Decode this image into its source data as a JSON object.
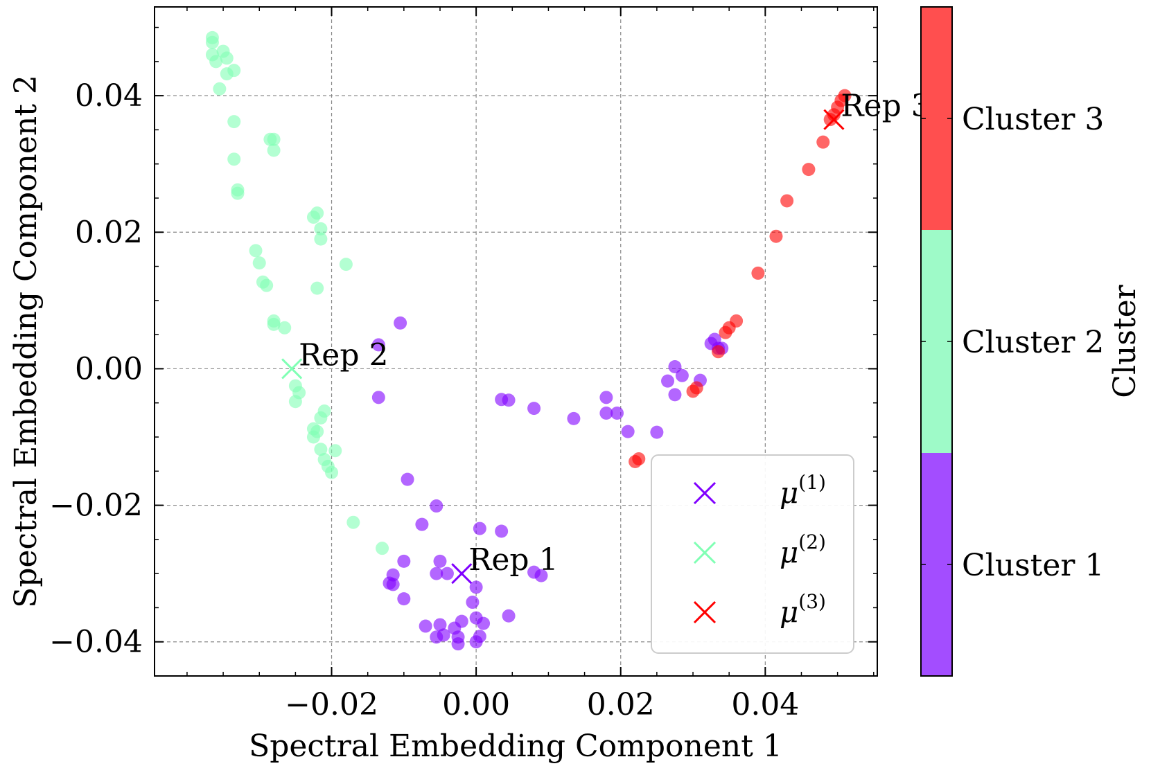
{
  "chart_data": {
    "type": "scatter",
    "xlabel": "Spectral Embedding Component 1",
    "ylabel": "Spectral Embedding Component 2",
    "xlim": [
      -0.0445,
      0.0555
    ],
    "ylim": [
      -0.045,
      0.053
    ],
    "xticks": [
      -0.02,
      0.0,
      0.02,
      0.04
    ],
    "xtick_labels": [
      "−0.02",
      "0.00",
      "0.02",
      "0.04"
    ],
    "yticks": [
      -0.04,
      -0.02,
      0.0,
      0.02,
      0.04
    ],
    "ytick_labels": [
      "−0.04",
      "−0.02",
      "0.00",
      "0.02",
      "0.04"
    ],
    "grid": true,
    "series": [
      {
        "name": "Cluster 1",
        "color": "#8000ff",
        "points": [
          [
            -0.0135,
            0.0035
          ],
          [
            -0.0105,
            0.0067
          ],
          [
            -0.0135,
            -0.0042
          ],
          [
            -0.0095,
            -0.0162
          ],
          [
            -0.0055,
            -0.0201
          ],
          [
            -0.0075,
            -0.0228
          ],
          [
            0.0005,
            -0.0234
          ],
          [
            0.0035,
            -0.0238
          ],
          [
            -0.005,
            -0.0282
          ],
          [
            -0.01,
            -0.0282
          ],
          [
            -0.0055,
            -0.03
          ],
          [
            -0.004,
            -0.03
          ],
          [
            -0.0115,
            -0.0302
          ],
          [
            -0.0115,
            -0.0316
          ],
          [
            -0.012,
            -0.0314
          ],
          [
            0.008,
            -0.0298
          ],
          [
            0.009,
            -0.0303
          ],
          [
            0.0,
            -0.032
          ],
          [
            -0.01,
            -0.0337
          ],
          [
            -0.0005,
            -0.0342
          ],
          [
            -0.002,
            -0.037
          ],
          [
            0.0,
            -0.0365
          ],
          [
            0.001,
            -0.0373
          ],
          [
            0.0045,
            -0.0362
          ],
          [
            -0.007,
            -0.0377
          ],
          [
            -0.005,
            -0.0375
          ],
          [
            -0.003,
            -0.038
          ],
          [
            -0.0045,
            -0.039
          ],
          [
            -0.0055,
            -0.0393
          ],
          [
            -0.0025,
            -0.0393
          ],
          [
            -0.0025,
            -0.0403
          ],
          [
            0.0,
            -0.04
          ],
          [
            0.0005,
            -0.0392
          ],
          [
            0.0035,
            -0.0045
          ],
          [
            0.0045,
            -0.0046
          ],
          [
            0.008,
            -0.0058
          ],
          [
            0.0135,
            -0.0073
          ],
          [
            0.018,
            -0.0042
          ],
          [
            0.018,
            -0.0065
          ],
          [
            0.0195,
            -0.0065
          ],
          [
            0.021,
            -0.0092
          ],
          [
            0.025,
            -0.0093
          ],
          [
            0.0265,
            -0.0018
          ],
          [
            0.0275,
            0.0003
          ],
          [
            0.0275,
            -0.0038
          ],
          [
            0.0285,
            -0.001
          ],
          [
            0.031,
            -0.0017
          ],
          [
            0.0325,
            0.0037
          ],
          [
            0.033,
            0.0043
          ],
          [
            0.0335,
            0.003
          ],
          [
            0.034,
            0.003
          ]
        ]
      },
      {
        "name": "Cluster 2",
        "color": "#80ffb4",
        "points": [
          [
            -0.0365,
            0.0485
          ],
          [
            -0.0365,
            0.0478
          ],
          [
            -0.0365,
            0.046
          ],
          [
            -0.036,
            0.045
          ],
          [
            -0.035,
            0.0465
          ],
          [
            -0.0345,
            0.0455
          ],
          [
            -0.0345,
            0.0432
          ],
          [
            -0.0335,
            0.0437
          ],
          [
            -0.0355,
            0.041
          ],
          [
            -0.0335,
            0.0362
          ],
          [
            -0.0335,
            0.0307
          ],
          [
            -0.033,
            0.0262
          ],
          [
            -0.033,
            0.0257
          ],
          [
            -0.0285,
            0.0336
          ],
          [
            -0.028,
            0.0336
          ],
          [
            -0.028,
            0.032
          ],
          [
            -0.0225,
            0.0222
          ],
          [
            -0.022,
            0.0228
          ],
          [
            -0.0215,
            0.0205
          ],
          [
            -0.0215,
            0.019
          ],
          [
            -0.022,
            0.0118
          ],
          [
            -0.018,
            0.0153
          ],
          [
            -0.0305,
            0.0173
          ],
          [
            -0.03,
            0.0155
          ],
          [
            -0.0295,
            0.0127
          ],
          [
            -0.029,
            0.0122
          ],
          [
            -0.028,
            0.007
          ],
          [
            -0.028,
            0.0065
          ],
          [
            -0.0265,
            0.006
          ],
          [
            -0.025,
            -0.0025
          ],
          [
            -0.0245,
            -0.0035
          ],
          [
            -0.025,
            -0.0048
          ],
          [
            -0.021,
            -0.0062
          ],
          [
            -0.0215,
            -0.0072
          ],
          [
            -0.0225,
            -0.0088
          ],
          [
            -0.0225,
            -0.01
          ],
          [
            -0.022,
            -0.0092
          ],
          [
            -0.0215,
            -0.0118
          ],
          [
            -0.0195,
            -0.012
          ],
          [
            -0.021,
            -0.0133
          ],
          [
            -0.0205,
            -0.0143
          ],
          [
            -0.02,
            -0.0152
          ],
          [
            -0.017,
            -0.0225
          ],
          [
            -0.013,
            -0.0263
          ]
        ]
      },
      {
        "name": "Cluster 3",
        "color": "#ff0000",
        "points": [
          [
            0.051,
            0.04
          ],
          [
            0.0505,
            0.0393
          ],
          [
            0.05,
            0.0383
          ],
          [
            0.0495,
            0.0372
          ],
          [
            0.049,
            0.0365
          ],
          [
            0.048,
            0.0332
          ],
          [
            0.046,
            0.0292
          ],
          [
            0.043,
            0.0246
          ],
          [
            0.0415,
            0.0194
          ],
          [
            0.039,
            0.014
          ],
          [
            0.036,
            0.007
          ],
          [
            0.035,
            0.006
          ],
          [
            0.0345,
            0.0053
          ],
          [
            0.0335,
            0.0025
          ],
          [
            0.0305,
            -0.0028
          ],
          [
            0.03,
            -0.0033
          ],
          [
            0.0225,
            -0.0132
          ],
          [
            0.022,
            -0.0136
          ]
        ]
      }
    ],
    "centroids": [
      {
        "name": "μ(1)",
        "x": -0.002,
        "y": -0.03,
        "color": "#8000ff"
      },
      {
        "name": "μ(2)",
        "x": -0.0255,
        "y": 0.0,
        "color": "#80ffb4"
      },
      {
        "name": "μ(3)",
        "x": 0.0495,
        "y": 0.0365,
        "color": "#ff0000"
      }
    ],
    "annotations": [
      {
        "text": "Rep 1",
        "x": -0.002,
        "y": -0.03
      },
      {
        "text": "Rep 2",
        "x": -0.0255,
        "y": 0.0
      },
      {
        "text": "Rep 3",
        "x": 0.0495,
        "y": 0.0365
      }
    ],
    "legend": {
      "position": "lower-right",
      "entries": [
        {
          "base": "μ",
          "sup": "(1)",
          "color": "#8000ff"
        },
        {
          "base": "μ",
          "sup": "(2)",
          "color": "#80ffb4"
        },
        {
          "base": "μ",
          "sup": "(3)",
          "color": "#ff0000"
        }
      ]
    },
    "colorbar": {
      "label": "Cluster",
      "segments": [
        {
          "name": "Cluster 3",
          "color": "#ff4f4f"
        },
        {
          "name": "Cluster 2",
          "color": "#9efac8"
        },
        {
          "name": "Cluster 1",
          "color": "#a34dff"
        }
      ]
    }
  }
}
